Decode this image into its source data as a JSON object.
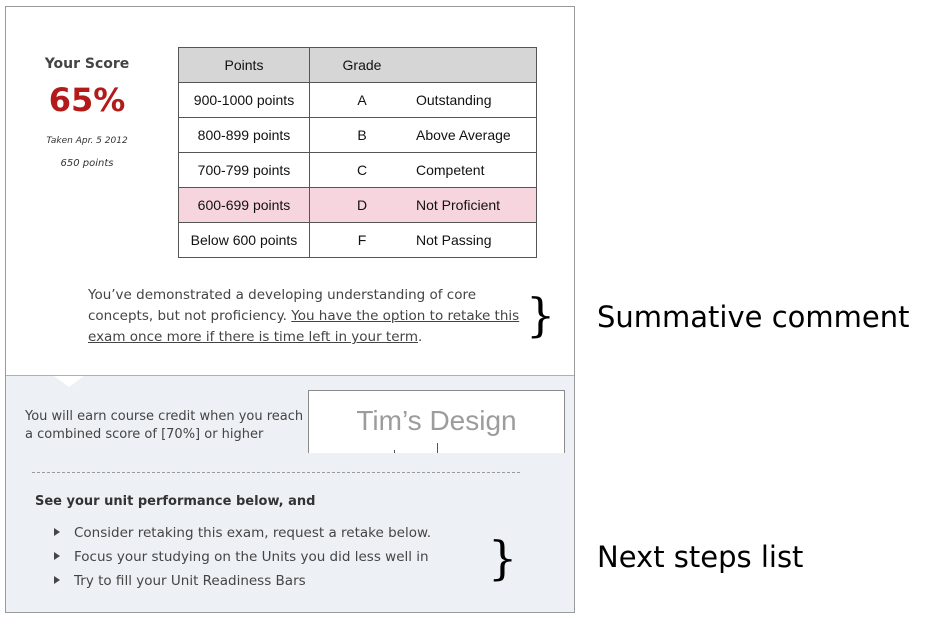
{
  "score": {
    "title": "Your Score",
    "value": "65%",
    "taken": "Taken Apr. 5 2012",
    "points": "650 points"
  },
  "grade_table": {
    "headers": [
      "Points",
      "Grade",
      ""
    ],
    "rows": [
      {
        "points": "900-1000 points",
        "grade": "A",
        "description": "Outstanding"
      },
      {
        "points": "800-899 points",
        "grade": "B",
        "description": "Above Average"
      },
      {
        "points": "700-799 points",
        "grade": "C",
        "description": "Competent"
      },
      {
        "points": "600-699 points",
        "grade": "D",
        "description": "Not Proficient",
        "highlighted": true
      },
      {
        "points": "Below 600 points",
        "grade": "F",
        "description": "Not Passing"
      }
    ],
    "highlight_color": "#f7d5df"
  },
  "comment": {
    "text": "You’ve demonstrated a developing understanding of core concepts, but not proficiency. ",
    "link": "You have the option to retake this exam once more if there is time left in your term",
    "end": "."
  },
  "credit": {
    "text": "You will earn course credit when you reach a combined score of [70%] or higher"
  },
  "design_box": {
    "label": "Tim’s Design"
  },
  "next_steps": {
    "heading": "See your unit performance below, and",
    "items": [
      "Consider retaking this exam, request a retake below.",
      "Focus your studying on the Units you did less well in",
      "Try to fill your Unit Readiness Bars"
    ]
  },
  "annotations": {
    "brace": "}",
    "summative": "Summative comment",
    "next_steps": "Next steps list"
  },
  "colors": {
    "score": "#b31b1b",
    "panel": "#edf1f5",
    "header": "#d6d6d6"
  }
}
